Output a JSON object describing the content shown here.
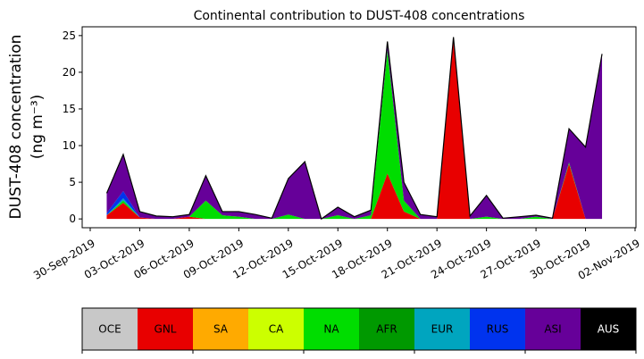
{
  "chart_data": {
    "type": "stacked_area",
    "title": "Continental contribution to DUST-408 concentrations",
    "y_label": [
      "DUST-408 concentration",
      "(ng m⁻³)"
    ],
    "x": [
      "2019-10-01",
      "2019-10-02",
      "2019-10-03",
      "2019-10-04",
      "2019-10-05",
      "2019-10-06",
      "2019-10-07",
      "2019-10-08",
      "2019-10-09",
      "2019-10-10",
      "2019-10-11",
      "2019-10-12",
      "2019-10-13",
      "2019-10-14",
      "2019-10-15",
      "2019-10-16",
      "2019-10-17",
      "2019-10-18",
      "2019-10-19",
      "2019-10-20",
      "2019-10-21",
      "2019-10-22",
      "2019-10-23",
      "2019-10-24",
      "2019-10-25",
      "2019-10-26",
      "2019-10-27",
      "2019-10-28",
      "2019-10-29",
      "2019-10-30",
      "2019-10-31"
    ],
    "xlim": [
      "2019-09-30",
      "2019-11-02"
    ],
    "xticks": [
      {
        "value": "2019-09-30",
        "label": "30-Sep-2019"
      },
      {
        "value": "2019-10-03",
        "label": "03-Oct-2019"
      },
      {
        "value": "2019-10-06",
        "label": "06-Oct-2019"
      },
      {
        "value": "2019-10-09",
        "label": "09-Oct-2019"
      },
      {
        "value": "2019-10-12",
        "label": "12-Oct-2019"
      },
      {
        "value": "2019-10-15",
        "label": "15-Oct-2019"
      },
      {
        "value": "2019-10-18",
        "label": "18-Oct-2019"
      },
      {
        "value": "2019-10-21",
        "label": "21-Oct-2019"
      },
      {
        "value": "2019-10-24",
        "label": "24-Oct-2019"
      },
      {
        "value": "2019-10-27",
        "label": "27-Oct-2019"
      },
      {
        "value": "2019-10-30",
        "label": "30-Oct-2019"
      },
      {
        "value": "2019-11-02",
        "label": "02-Nov-2019"
      }
    ],
    "ylim": [
      -1.2,
      26.2
    ],
    "yticks": [
      0,
      5,
      10,
      15,
      20,
      25
    ],
    "series": [
      {
        "name": "OCE",
        "color": "#c8c8c8",
        "values": [
          0,
          0,
          0,
          0,
          0,
          0,
          0,
          0,
          0,
          0,
          0,
          0,
          0,
          0,
          0,
          0,
          0,
          0,
          0,
          0,
          0,
          0,
          0,
          0,
          0,
          0,
          0,
          0,
          0,
          0,
          0
        ]
      },
      {
        "name": "GNL",
        "color": "#e80000",
        "values": [
          0.5,
          2.2,
          0.2,
          0,
          0,
          0.3,
          0,
          0,
          0,
          0,
          0,
          0,
          0,
          0,
          0,
          0,
          0,
          6.2,
          1.0,
          0,
          0,
          24.3,
          0,
          0,
          0,
          0,
          0,
          0,
          7.5,
          0,
          0
        ]
      },
      {
        "name": "SA",
        "color": "#ffaa00",
        "values": [
          0,
          0,
          0,
          0,
          0,
          0,
          0,
          0,
          0,
          0,
          0,
          0,
          0,
          0,
          0,
          0,
          0,
          0,
          0,
          0,
          0,
          0,
          0,
          0,
          0,
          0,
          0,
          0,
          0,
          0,
          0
        ]
      },
      {
        "name": "CA",
        "color": "#ccff00",
        "values": [
          0,
          0,
          0,
          0,
          0,
          0,
          0,
          0,
          0,
          0,
          0,
          0,
          0,
          0,
          0,
          0,
          0,
          0,
          0,
          0,
          0,
          0,
          0,
          0,
          0,
          0,
          0,
          0,
          0,
          0,
          0
        ]
      },
      {
        "name": "NA",
        "color": "#00dd00",
        "values": [
          0,
          0.3,
          0,
          0,
          0,
          0,
          2.5,
          0.5,
          0.3,
          0,
          0,
          0.6,
          0,
          0,
          0.5,
          0,
          0.5,
          16.8,
          1.5,
          0,
          0,
          0,
          0,
          0.3,
          0,
          0,
          0.3,
          0,
          0.2,
          0,
          0
        ]
      },
      {
        "name": "AFR",
        "color": "#009900",
        "values": [
          0,
          0,
          0,
          0,
          0,
          0,
          0,
          0,
          0,
          0,
          0,
          0,
          0,
          0,
          0,
          0,
          0,
          0,
          0,
          0,
          0,
          0,
          0,
          0,
          0,
          0,
          0,
          0,
          0,
          0,
          0
        ]
      },
      {
        "name": "EUR",
        "color": "#00a5bf",
        "values": [
          0,
          0.3,
          0,
          0,
          0,
          0,
          0,
          0,
          0,
          0,
          0,
          0,
          0,
          0,
          0,
          0,
          0,
          0,
          0,
          0,
          0,
          0,
          0,
          0,
          0,
          0,
          0,
          0,
          0,
          0,
          0
        ]
      },
      {
        "name": "RUS",
        "color": "#0033ee",
        "values": [
          0.3,
          1,
          0,
          0,
          0,
          0,
          0,
          0,
          0,
          0,
          0,
          0,
          0,
          0,
          0,
          0,
          0,
          0,
          0,
          0,
          0,
          0,
          0,
          0,
          0,
          0,
          0,
          0,
          0,
          0,
          0
        ]
      },
      {
        "name": "ASI",
        "color": "#660099",
        "values": [
          2.7,
          5.0,
          0.8,
          0.4,
          0.3,
          0.3,
          3.4,
          0.5,
          0.7,
          0.6,
          0.1,
          4.9,
          7.8,
          0,
          1.1,
          0.3,
          0.7,
          1.2,
          2.5,
          0.6,
          0.3,
          0.5,
          0.4,
          2.9,
          0.1,
          0.3,
          0.2,
          0.1,
          4.6,
          9.8,
          22.5
        ]
      },
      {
        "name": "AUS",
        "color": "#000000",
        "values": [
          0,
          0,
          0,
          0,
          0,
          0,
          0,
          0,
          0,
          0,
          0,
          0,
          0,
          0,
          0,
          0,
          0,
          0,
          0,
          0,
          0,
          0,
          0,
          0,
          0,
          0,
          0,
          0,
          0,
          0,
          0
        ]
      }
    ]
  }
}
